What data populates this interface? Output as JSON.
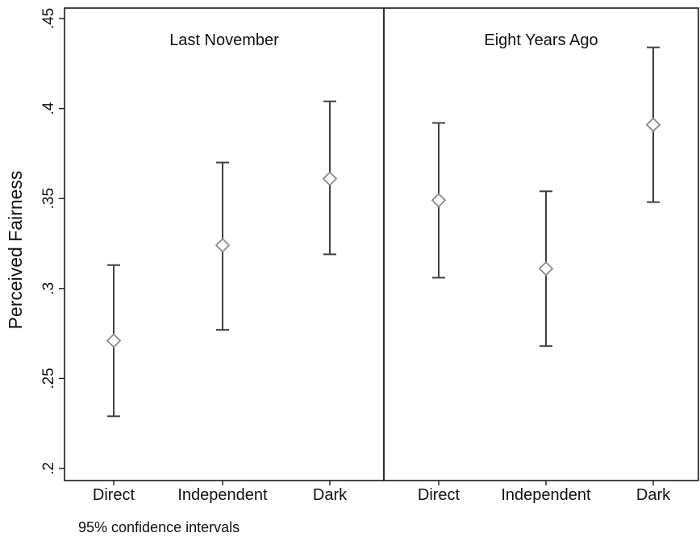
{
  "chart_data": {
    "type": "scatter",
    "subtype": "dot-with-95pct-ci",
    "ylabel": "Perceived Fairness",
    "ylim": [
      0.2,
      0.45
    ],
    "yticks": [
      0.2,
      0.25,
      0.3,
      0.35,
      0.4,
      0.45
    ],
    "ytick_labels": [
      ".2",
      ".25",
      ".3",
      ".35",
      ".4",
      ".45"
    ],
    "categories": [
      "Direct",
      "Independent",
      "Dark"
    ],
    "grid": false,
    "marker": "hollow-diamond",
    "note": "95% confidence intervals",
    "panels": [
      {
        "title": "Last November",
        "points": [
          {
            "category": "Direct",
            "estimate": 0.271,
            "lower": 0.229,
            "upper": 0.313
          },
          {
            "category": "Independent",
            "estimate": 0.324,
            "lower": 0.277,
            "upper": 0.37
          },
          {
            "category": "Dark",
            "estimate": 0.361,
            "lower": 0.319,
            "upper": 0.404
          }
        ]
      },
      {
        "title": "Eight Years Ago",
        "points": [
          {
            "category": "Direct",
            "estimate": 0.349,
            "lower": 0.306,
            "upper": 0.392
          },
          {
            "category": "Independent",
            "estimate": 0.311,
            "lower": 0.268,
            "upper": 0.354
          },
          {
            "category": "Dark",
            "estimate": 0.391,
            "lower": 0.348,
            "upper": 0.434
          }
        ]
      }
    ]
  }
}
